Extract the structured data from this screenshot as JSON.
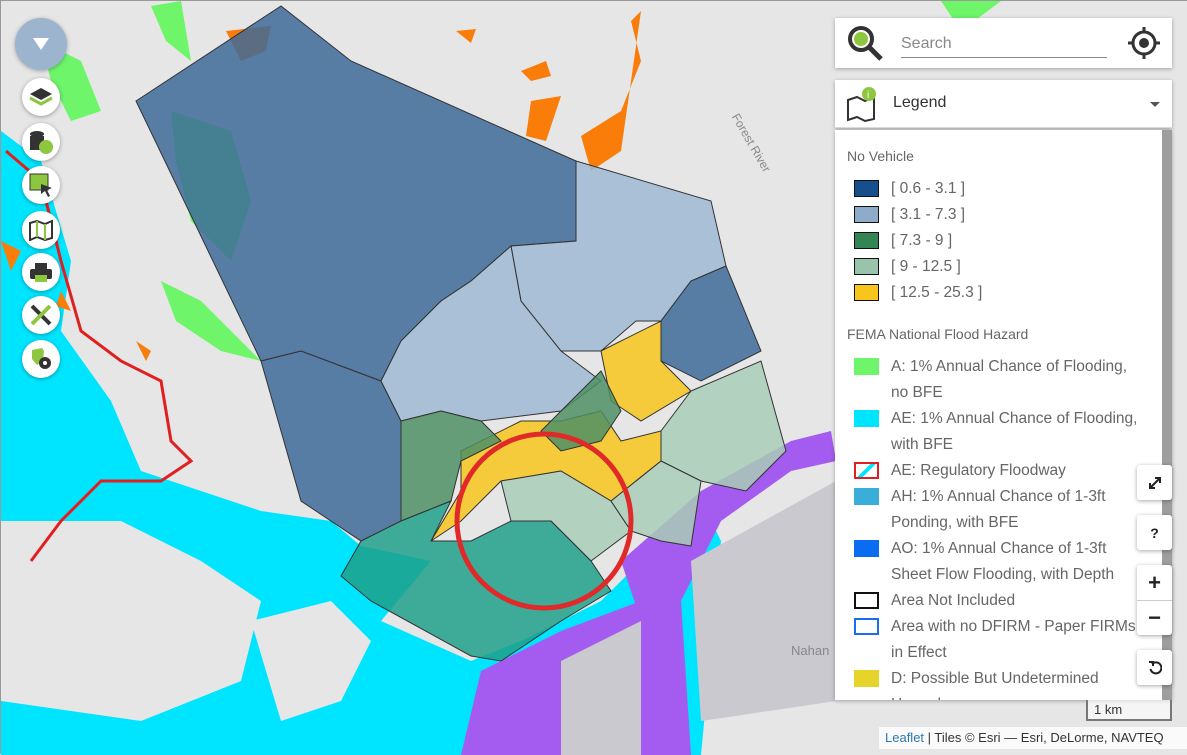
{
  "search": {
    "placeholder": "Search"
  },
  "legend": {
    "title": "Legend",
    "sections": [
      {
        "title": "No Vehicle",
        "items": [
          {
            "label": "[ 0.6 - 3.1 ]",
            "color": "#15508d"
          },
          {
            "label": "[ 3.1 - 7.3 ]",
            "color": "#8eabc9"
          },
          {
            "label": "[ 7.3 - 9 ]",
            "color": "#338554"
          },
          {
            "label": "[ 9 - 12.5 ]",
            "color": "#9ac3ab"
          },
          {
            "label": "[ 12.5 - 25.3 ]",
            "color": "#f7c51c"
          }
        ]
      },
      {
        "title": "FEMA National Flood Hazard",
        "items": [
          {
            "label": "A: 1% Annual Chance of Flooding, no BFE",
            "color": "#6ef56a"
          },
          {
            "label": "AE: 1% Annual Chance of Flooding, with BFE",
            "color": "#00e5ff"
          },
          {
            "label": "AE: Regulatory Floodway",
            "color": "#e02020"
          },
          {
            "label": "AH: 1% Annual Chance of 1-3ft Ponding, with BFE",
            "color": "#3aaed8"
          },
          {
            "label": "AO: 1% Annual Chance of 1-3ft Sheet Flow Flooding, with Depth",
            "color": "#0a6cf0"
          },
          {
            "label": "Area Not Included",
            "color": "#111111"
          },
          {
            "label": "Area with no DFIRM - Paper FIRMs in Effect",
            "color": "#1a6cf0"
          },
          {
            "label": "D: Possible But Undetermined Hazard",
            "color": "#e6d42a"
          }
        ]
      }
    ]
  },
  "map": {
    "labels": {
      "river": "Forest River",
      "place": "Nahan"
    },
    "scale": "1 km",
    "attribution": {
      "link": "Leaflet",
      "text": " | Tiles © Esri — Esri, DeLorme, NAVTEQ"
    }
  },
  "controls": {
    "help": "?",
    "zoom_in": "+",
    "zoom_out": "−"
  }
}
